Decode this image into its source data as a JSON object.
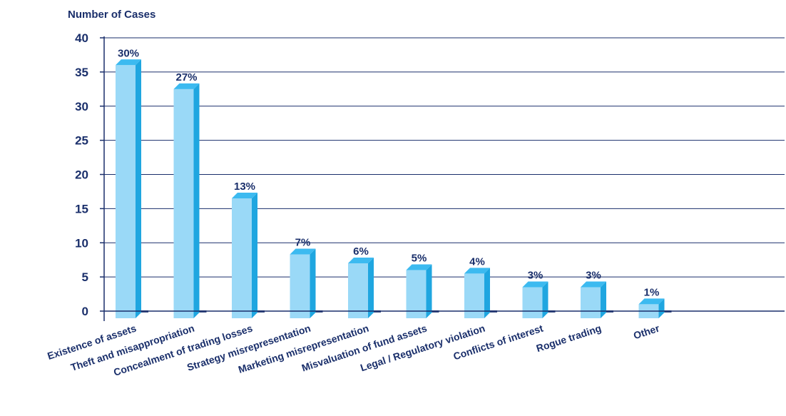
{
  "chart_data": {
    "type": "bar",
    "ylabel": "Number of Cases",
    "xlabel": "",
    "ylim": [
      0,
      40
    ],
    "yticks": [
      0,
      5,
      10,
      15,
      20,
      25,
      30,
      35,
      40
    ],
    "grid": true,
    "categories": [
      "Existence of assets",
      "Theft and misappropriation",
      "Concealment of trading losses",
      "Strategy misrepresentation",
      "Marketing misrepresentation",
      "Misvaluation of fund assets",
      "Legal / Regulatory violation",
      "Conflicts of interest",
      "Rogue trading",
      "Other"
    ],
    "values": [
      36,
      32.5,
      16.5,
      8.3,
      7,
      6,
      5.5,
      3.5,
      3.5,
      1
    ],
    "data_labels": [
      "30%",
      "27%",
      "13%",
      "7%",
      "6%",
      "5%",
      "4%",
      "3%",
      "3%",
      "1%"
    ],
    "colors": {
      "bar_front": "#9ad9f7",
      "bar_side": "#1fa6e0",
      "bar_top": "#3cbaf0",
      "axis": "#1a2f6b",
      "text": "#1a2f6b"
    }
  }
}
